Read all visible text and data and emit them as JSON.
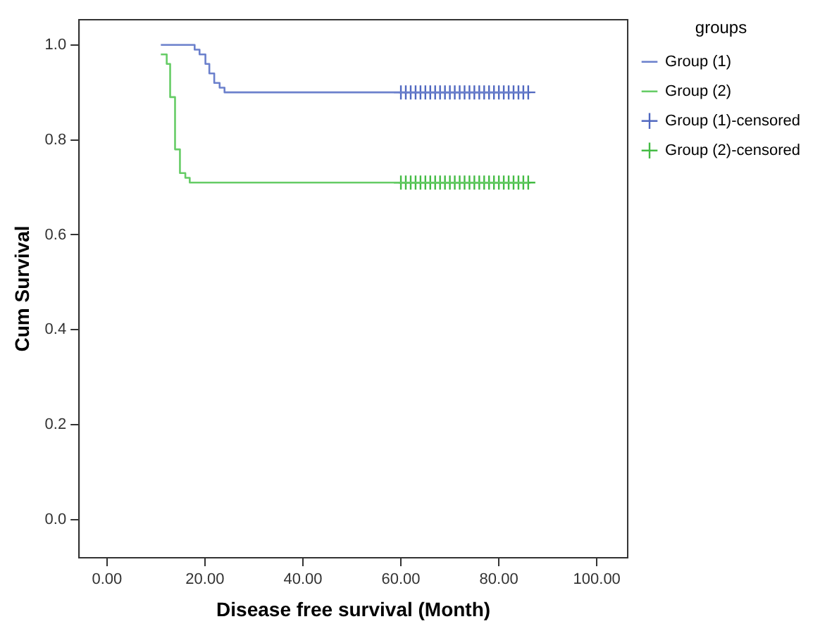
{
  "chart_data": {
    "type": "step",
    "xlabel": "Disease free survival (Month)",
    "ylabel": "Cum Survival",
    "legend_title": "groups",
    "legend": "right",
    "grid": false,
    "marker": "none",
    "xlim": [
      -5.7,
      106.3
    ],
    "ylim": [
      -0.08,
      1.053
    ],
    "xticks": [
      {
        "value": 0,
        "label": "0.00"
      },
      {
        "value": 20,
        "label": "20.00"
      },
      {
        "value": 40,
        "label": "40.00"
      },
      {
        "value": 60,
        "label": "60.00"
      },
      {
        "value": 80,
        "label": "80.00"
      },
      {
        "value": 100,
        "label": "100.00"
      }
    ],
    "yticks": [
      {
        "value": 0,
        "label": "0.0"
      },
      {
        "value": 0.2,
        "label": "0.2"
      },
      {
        "value": 0.4,
        "label": "0.4"
      },
      {
        "value": 0.6,
        "label": "0.6"
      },
      {
        "value": 0.8,
        "label": "0.8"
      },
      {
        "value": 1,
        "label": "1.0"
      }
    ],
    "series": [
      {
        "name": "Group (1)",
        "type": "step",
        "color": "#6b80cc",
        "x": [
          11,
          17.9,
          18.9,
          20.1,
          20.9,
          21.9,
          23,
          24,
          86
        ],
        "values": [
          1,
          0.99,
          0.98,
          0.96,
          0.94,
          0.92,
          0.91,
          0.9,
          0.9
        ]
      },
      {
        "name": "Group (2)",
        "type": "step",
        "color": "#66cc66",
        "x": [
          11,
          12.2,
          12.9,
          13.9,
          14.9,
          16,
          16.9,
          86
        ],
        "values": [
          0.98,
          0.96,
          0.89,
          0.78,
          0.73,
          0.72,
          0.71,
          0.71
        ]
      },
      {
        "name": "Group (1)-censored",
        "type": "scatter",
        "marker": "cross",
        "color": "#5068c0",
        "x": [
          60,
          61,
          62,
          63,
          64,
          65,
          66,
          67,
          68,
          69,
          70,
          71,
          72,
          73,
          74,
          75,
          76,
          77,
          78,
          79,
          80,
          81,
          82,
          83,
          84,
          85,
          86
        ],
        "values": [
          0.9,
          0.9,
          0.9,
          0.9,
          0.9,
          0.9,
          0.9,
          0.9,
          0.9,
          0.9,
          0.9,
          0.9,
          0.9,
          0.9,
          0.9,
          0.9,
          0.9,
          0.9,
          0.9,
          0.9,
          0.9,
          0.9,
          0.9,
          0.9,
          0.9,
          0.9,
          0.9
        ]
      },
      {
        "name": "Group (2)-censored",
        "type": "scatter",
        "marker": "cross",
        "color": "#44bb44",
        "x": [
          60,
          61,
          62,
          63,
          64,
          65,
          66,
          67,
          68,
          69,
          70,
          71,
          72,
          73,
          74,
          75,
          76,
          77,
          78,
          79,
          80,
          81,
          82,
          83,
          84,
          85,
          86
        ],
        "values": [
          0.71,
          0.71,
          0.71,
          0.71,
          0.71,
          0.71,
          0.71,
          0.71,
          0.71,
          0.71,
          0.71,
          0.71,
          0.71,
          0.71,
          0.71,
          0.71,
          0.71,
          0.71,
          0.71,
          0.71,
          0.71,
          0.71,
          0.71,
          0.71,
          0.71,
          0.71,
          0.71
        ]
      }
    ]
  }
}
